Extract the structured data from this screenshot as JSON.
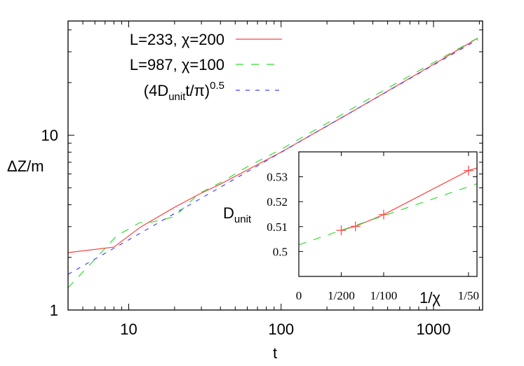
{
  "chart_data": [
    {
      "type": "line",
      "title": "",
      "xlabel": "t",
      "ylabel": "ΔZ/m",
      "xscale": "log",
      "yscale": "log",
      "xlim": [
        4,
        2100
      ],
      "ylim": [
        1,
        45
      ],
      "xticks": [
        {
          "value": 10,
          "label": "10"
        },
        {
          "value": 100,
          "label": "100"
        },
        {
          "value": 1000,
          "label": "1000"
        }
      ],
      "yticks": [
        {
          "value": 1,
          "label": "1"
        },
        {
          "value": 10,
          "label": "10"
        }
      ],
      "grid": false,
      "legend_position": "top-right",
      "series": [
        {
          "name": "L=233, χ=200",
          "color": "#ff4040",
          "style": "solid",
          "points": [
            [
              4,
              2.13
            ],
            [
              8,
              2.29
            ],
            [
              12,
              2.99
            ],
            [
              20,
              3.87
            ],
            [
              28.6,
              4.57
            ],
            [
              40,
              5.25
            ],
            [
              100,
              8.0
            ],
            [
              300,
              13.8
            ],
            [
              1000,
              25.4
            ],
            [
              1950,
              35.9
            ]
          ]
        },
        {
          "name": "L=987, χ=100",
          "color": "#33dd33",
          "style": "long-dash",
          "points": [
            [
              4,
              1.34
            ],
            [
              7,
              2.25
            ],
            [
              8.3,
              2.65
            ],
            [
              11.8,
              3.16
            ],
            [
              13.6,
              3.16
            ],
            [
              20,
              3.42
            ],
            [
              29,
              4.65
            ],
            [
              40,
              5.35
            ],
            [
              60,
              6.6
            ],
            [
              100,
              8.3
            ],
            [
              200,
              11.7
            ],
            [
              500,
              18.6
            ],
            [
              1000,
              26.0
            ],
            [
              1950,
              36.0
            ]
          ]
        },
        {
          "name": "(4D_unit t/π)^0.5",
          "name_parts": [
            "(4D",
            "unit",
            "t/π)",
            "0.5"
          ],
          "color": "#4444ff",
          "style": "short-dash",
          "points": [
            [
              4,
              1.6
            ],
            [
              10,
              2.52
            ],
            [
              100,
              7.98
            ],
            [
              1000,
              25.2
            ],
            [
              1950,
              35.2
            ]
          ]
        }
      ]
    },
    {
      "type": "line",
      "title": "",
      "inset": true,
      "xlabel": "1/χ",
      "ylabel_parts": [
        "D",
        "unit"
      ],
      "xlim": [
        0,
        0.021
      ],
      "ylim": [
        0.49,
        0.54
      ],
      "xticks": [
        {
          "value": 0,
          "label": "0"
        },
        {
          "value": 0.005,
          "label": "1/200"
        },
        {
          "value": 0.01,
          "label": "1/100"
        },
        {
          "value": 0.02,
          "label": "1/50"
        }
      ],
      "yticks": [
        {
          "value": 0.5,
          "label": "0.5"
        },
        {
          "value": 0.51,
          "label": "0.51"
        },
        {
          "value": 0.52,
          "label": "0.52"
        },
        {
          "value": 0.53,
          "label": "0.53"
        }
      ],
      "series": [
        {
          "color": "#ff4040",
          "style": "solid-with-points",
          "points": [
            [
              0.005,
              0.5085
            ],
            [
              0.00667,
              0.5101
            ],
            [
              0.01,
              0.5148
            ],
            [
              0.02,
              0.5325
            ]
          ],
          "line": [
            [
              0.005,
              0.5085
            ],
            [
              0.00667,
              0.5101
            ],
            [
              0.01,
              0.5148
            ],
            [
              0.02,
              0.5325
            ],
            [
              0.021,
              0.5335
            ]
          ]
        },
        {
          "color": "#33dd33",
          "style": "long-dash",
          "points": [
            [
              0,
              0.5027
            ],
            [
              0.021,
              0.5272
            ]
          ]
        }
      ]
    }
  ]
}
